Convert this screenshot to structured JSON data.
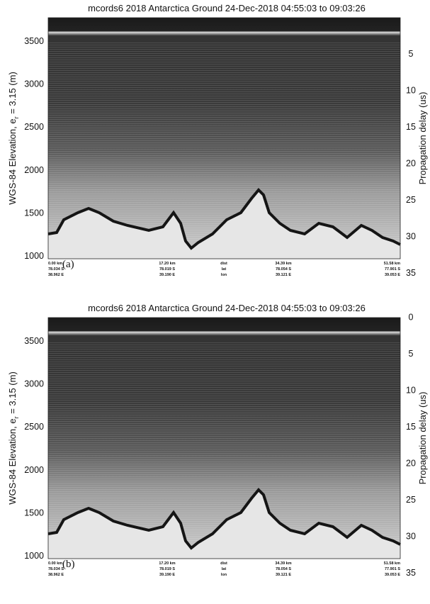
{
  "panels": [
    {
      "title": "mcords6 2018 Antarctica Ground 24-Dec-2018 04:55:03 to 09:03:26",
      "panel_label": "(a)",
      "y_label": "WGS-84 Elevation, e",
      "y_label_sub": "r",
      "y_label_tail": " = 3.15 (m)",
      "y2_label": "Propagation delay (us)",
      "yticks": [
        "3500",
        "3000",
        "2500",
        "2000",
        "1500",
        "1000"
      ],
      "y2ticks": [
        "5",
        "10",
        "15",
        "20",
        "25",
        "30",
        "35"
      ],
      "footer": [
        [
          "0.00 km",
          "78.034 S",
          "38.962 E"
        ],
        [
          "17.20 km",
          "78.019 S",
          "39.190 E"
        ],
        [
          "dist",
          "lat",
          "lon"
        ],
        [
          "34.39 km",
          "78.054 S",
          "39.121 E"
        ],
        [
          "51.58 km",
          "77.901 S",
          "39.053 E"
        ]
      ]
    },
    {
      "title": "mcords6 2018 Antarctica Ground 24-Dec-2018 04:55:03 to 09:03:26",
      "panel_label": "(b)",
      "y_label": "WGS-84 Elevation, e",
      "y_label_sub": "r",
      "y_label_tail": " = 3.15 (m)",
      "y2_label": "Propagation delay (us)",
      "yticks": [
        "3500",
        "3000",
        "2500",
        "2000",
        "1500",
        "1000"
      ],
      "y2ticks": [
        "0",
        "5",
        "10",
        "15",
        "20",
        "25",
        "30",
        "35"
      ],
      "footer": [
        [
          "0.00 km",
          "78.034 S",
          "38.962 E"
        ],
        [
          "17.20 km",
          "78.019 S",
          "39.190 E"
        ],
        [
          "dist",
          "lat",
          "lon"
        ],
        [
          "34.39 km",
          "78.054 S",
          "39.121 E"
        ],
        [
          "51.58 km",
          "77.901 S",
          "39.053 E"
        ]
      ]
    }
  ]
}
